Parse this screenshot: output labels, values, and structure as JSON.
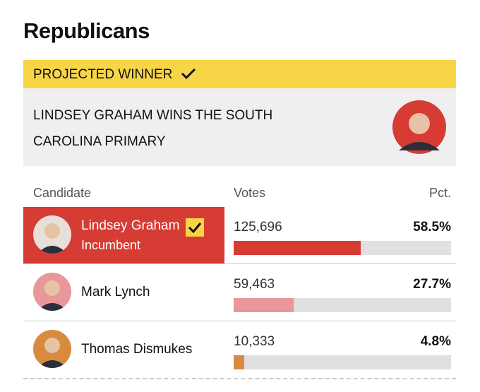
{
  "header": {
    "title": "Republicans"
  },
  "banner": {
    "label": "PROJECTED WINNER",
    "headline": "LINDSEY GRAHAM WINS THE SOUTH CAROLINA PRIMARY"
  },
  "table": {
    "columns": [
      "Candidate",
      "Votes",
      "Pct."
    ],
    "rows": [
      {
        "name": "Lindsey Graham",
        "note": "Incumbent",
        "winner": true,
        "votes": "125,696",
        "pct": 58.5,
        "pct_label": "58.5%",
        "color": "#d63b34",
        "photo_color": "#e8e0d8"
      },
      {
        "name": "Mark Lynch",
        "votes": "59,463",
        "pct": 27.7,
        "pct_label": "27.7%",
        "color": "#e8979a",
        "photo_color": "#e8979a"
      },
      {
        "name": "Thomas Dismukes",
        "votes": "10,333",
        "pct": 4.8,
        "pct_label": "4.8%",
        "color": "#d88a3f",
        "photo_color": "#d88a3f"
      }
    ]
  }
}
